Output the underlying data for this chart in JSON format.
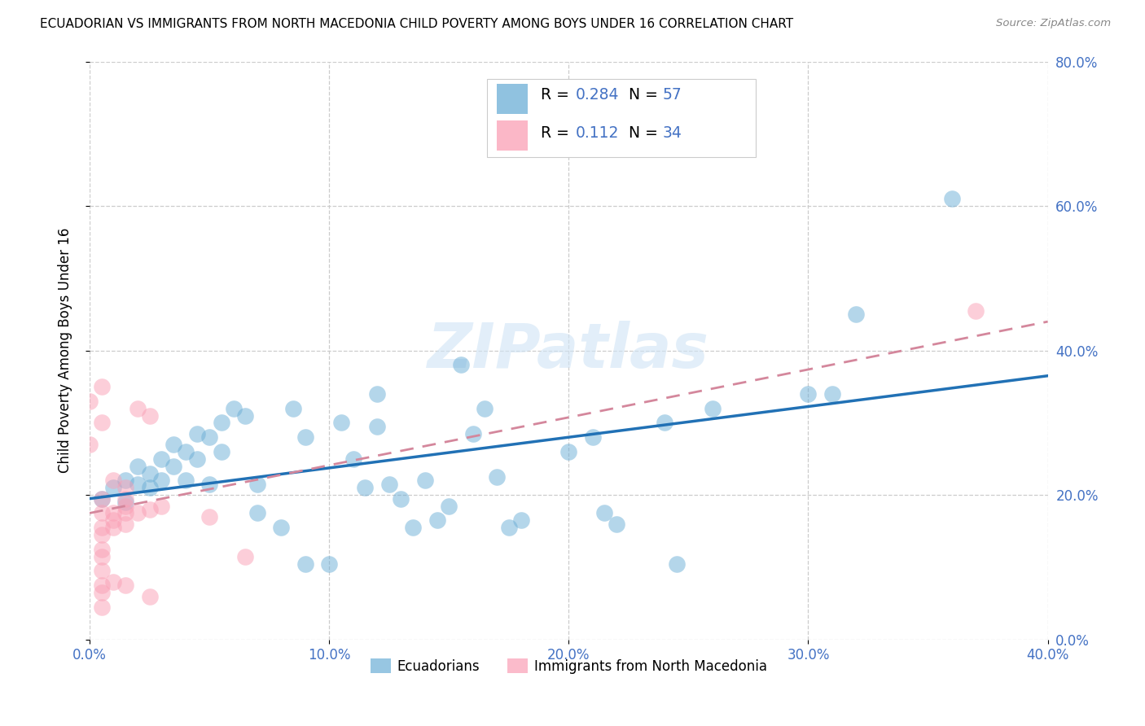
{
  "title": "ECUADORIAN VS IMMIGRANTS FROM NORTH MACEDONIA CHILD POVERTY AMONG BOYS UNDER 16 CORRELATION CHART",
  "source": "Source: ZipAtlas.com",
  "ylabel": "Child Poverty Among Boys Under 16",
  "legend_label1": "Ecuadorians",
  "legend_label2": "Immigrants from North Macedonia",
  "R1": 0.284,
  "N1": 57,
  "R2": 0.112,
  "N2": 34,
  "xlim": [
    0.0,
    0.4
  ],
  "ylim": [
    0.0,
    0.8
  ],
  "xticks": [
    0.0,
    0.1,
    0.2,
    0.3,
    0.4
  ],
  "yticks": [
    0.0,
    0.2,
    0.4,
    0.6,
    0.8
  ],
  "color_blue": "#6baed6",
  "color_pink": "#fa9fb5",
  "line_blue": "#2171b5",
  "line_pink": "#d4879c",
  "tick_color": "#4472c4",
  "watermark": "ZIPatlas",
  "blue_points": [
    [
      0.005,
      0.195
    ],
    [
      0.01,
      0.21
    ],
    [
      0.015,
      0.22
    ],
    [
      0.015,
      0.19
    ],
    [
      0.02,
      0.24
    ],
    [
      0.02,
      0.215
    ],
    [
      0.025,
      0.23
    ],
    [
      0.025,
      0.21
    ],
    [
      0.03,
      0.25
    ],
    [
      0.03,
      0.22
    ],
    [
      0.035,
      0.27
    ],
    [
      0.035,
      0.24
    ],
    [
      0.04,
      0.26
    ],
    [
      0.04,
      0.22
    ],
    [
      0.045,
      0.285
    ],
    [
      0.045,
      0.25
    ],
    [
      0.05,
      0.28
    ],
    [
      0.05,
      0.215
    ],
    [
      0.055,
      0.3
    ],
    [
      0.055,
      0.26
    ],
    [
      0.06,
      0.32
    ],
    [
      0.065,
      0.31
    ],
    [
      0.07,
      0.175
    ],
    [
      0.07,
      0.215
    ],
    [
      0.08,
      0.155
    ],
    [
      0.085,
      0.32
    ],
    [
      0.09,
      0.28
    ],
    [
      0.09,
      0.105
    ],
    [
      0.1,
      0.105
    ],
    [
      0.105,
      0.3
    ],
    [
      0.11,
      0.25
    ],
    [
      0.115,
      0.21
    ],
    [
      0.12,
      0.34
    ],
    [
      0.12,
      0.295
    ],
    [
      0.125,
      0.215
    ],
    [
      0.13,
      0.195
    ],
    [
      0.135,
      0.155
    ],
    [
      0.14,
      0.22
    ],
    [
      0.145,
      0.165
    ],
    [
      0.15,
      0.185
    ],
    [
      0.155,
      0.38
    ],
    [
      0.16,
      0.285
    ],
    [
      0.165,
      0.32
    ],
    [
      0.17,
      0.225
    ],
    [
      0.175,
      0.155
    ],
    [
      0.18,
      0.165
    ],
    [
      0.2,
      0.26
    ],
    [
      0.21,
      0.28
    ],
    [
      0.215,
      0.175
    ],
    [
      0.22,
      0.16
    ],
    [
      0.24,
      0.3
    ],
    [
      0.245,
      0.105
    ],
    [
      0.26,
      0.32
    ],
    [
      0.3,
      0.34
    ],
    [
      0.31,
      0.34
    ],
    [
      0.32,
      0.45
    ],
    [
      0.36,
      0.61
    ]
  ],
  "pink_points": [
    [
      0.0,
      0.33
    ],
    [
      0.0,
      0.27
    ],
    [
      0.005,
      0.35
    ],
    [
      0.005,
      0.3
    ],
    [
      0.005,
      0.195
    ],
    [
      0.005,
      0.175
    ],
    [
      0.005,
      0.155
    ],
    [
      0.005,
      0.145
    ],
    [
      0.005,
      0.125
    ],
    [
      0.005,
      0.115
    ],
    [
      0.005,
      0.095
    ],
    [
      0.005,
      0.075
    ],
    [
      0.005,
      0.065
    ],
    [
      0.005,
      0.045
    ],
    [
      0.01,
      0.22
    ],
    [
      0.01,
      0.175
    ],
    [
      0.01,
      0.165
    ],
    [
      0.01,
      0.155
    ],
    [
      0.01,
      0.08
    ],
    [
      0.015,
      0.21
    ],
    [
      0.015,
      0.195
    ],
    [
      0.015,
      0.185
    ],
    [
      0.015,
      0.175
    ],
    [
      0.015,
      0.16
    ],
    [
      0.015,
      0.075
    ],
    [
      0.02,
      0.32
    ],
    [
      0.02,
      0.175
    ],
    [
      0.025,
      0.31
    ],
    [
      0.025,
      0.18
    ],
    [
      0.025,
      0.06
    ],
    [
      0.03,
      0.185
    ],
    [
      0.05,
      0.17
    ],
    [
      0.065,
      0.115
    ],
    [
      0.37,
      0.455
    ]
  ],
  "blue_line_x": [
    0.0,
    0.4
  ],
  "blue_line_y": [
    0.195,
    0.365
  ],
  "pink_line_x": [
    0.0,
    0.4
  ],
  "pink_line_y": [
    0.175,
    0.44
  ]
}
